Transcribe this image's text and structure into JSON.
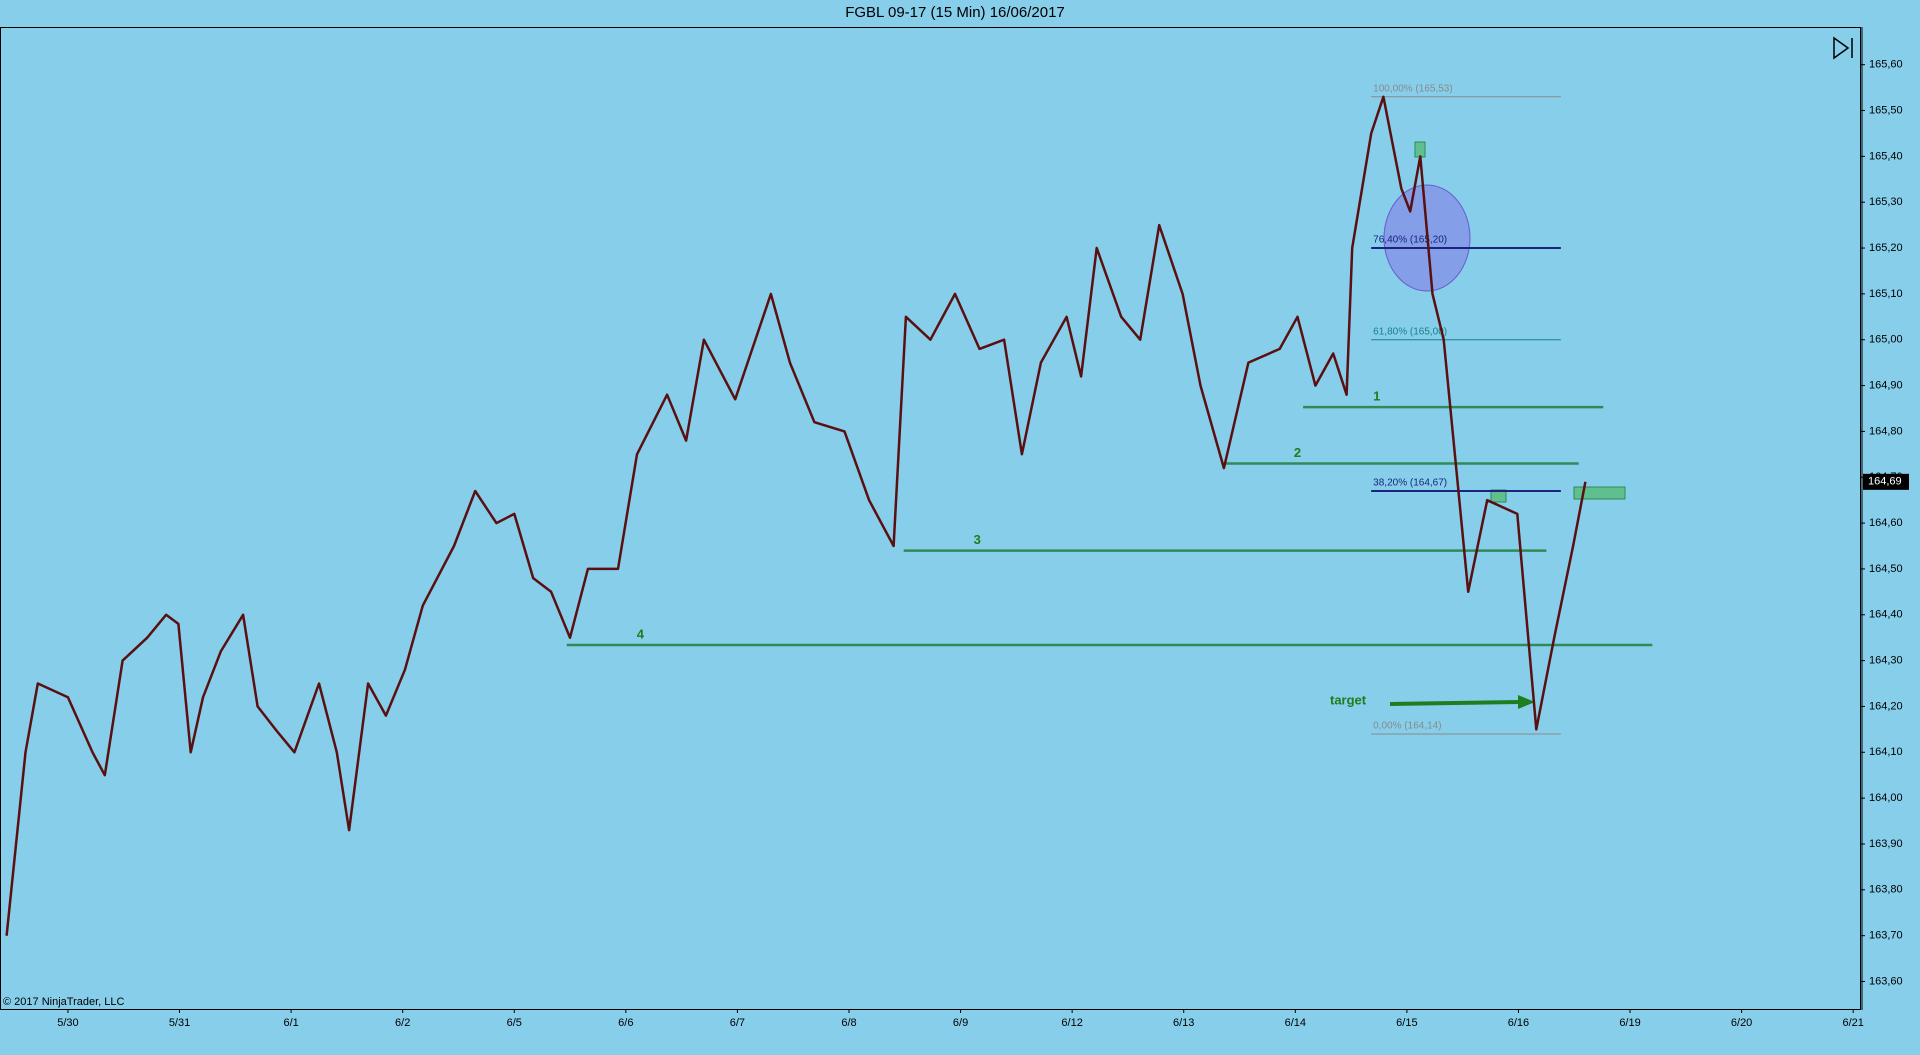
{
  "chart_data": {
    "type": "line",
    "title": "FGBL 09-17 (15 Min)  16/06/2017",
    "source_note": "© 2017 NinjaTrader, LLC",
    "color": "#5a1010",
    "x": [
      -0.55,
      -0.38,
      -0.27,
      0,
      0.22,
      0.33,
      0.49,
      0.71,
      0.88,
      0.99,
      1.1,
      1.21,
      1.37,
      1.57,
      1.7,
      1.86,
      2.03,
      2.25,
      2.41,
      2.52,
      2.69,
      2.85,
      3.02,
      3.18,
      3.46,
      3.65,
      3.84,
      4.0,
      4.17,
      4.33,
      4.5,
      4.66,
      4.93,
      5.1,
      5.37,
      5.54,
      5.7,
      5.98,
      6.3,
      6.47,
      6.69,
      6.96,
      7.18,
      7.4,
      7.51,
      7.73,
      7.95,
      8.17,
      8.39,
      8.55,
      8.72,
      8.95,
      9.08,
      9.22,
      9.44,
      9.61,
      9.78,
      9.99,
      10.15,
      10.36,
      10.58,
      10.86,
      11.02,
      11.18,
      11.34,
      11.46,
      11.51,
      11.68,
      11.79,
      11.95,
      12.03,
      12.12,
      12.23,
      12.33,
      12.45,
      12.55,
      12.72,
      12.99,
      13.16,
      13.32,
      13.49,
      13.6
    ],
    "values": [
      163.7,
      164.1,
      164.25,
      164.22,
      164.1,
      164.05,
      164.3,
      164.35,
      164.4,
      164.38,
      164.1,
      164.22,
      164.32,
      164.4,
      164.2,
      164.15,
      164.1,
      164.25,
      164.1,
      163.93,
      164.25,
      164.18,
      164.28,
      164.42,
      164.55,
      164.67,
      164.6,
      164.62,
      164.48,
      164.45,
      164.35,
      164.5,
      164.5,
      164.75,
      164.88,
      164.78,
      165.0,
      164.87,
      165.1,
      164.95,
      164.82,
      164.8,
      164.65,
      164.55,
      165.05,
      165.0,
      165.1,
      164.98,
      165.0,
      164.75,
      164.95,
      165.05,
      164.92,
      165.2,
      165.05,
      165.0,
      165.25,
      165.1,
      164.9,
      164.72,
      164.95,
      164.98,
      165.05,
      164.9,
      164.97,
      164.88,
      165.2,
      165.45,
      165.53,
      165.33,
      165.28,
      165.4,
      165.1,
      165.0,
      164.7,
      164.45,
      164.65,
      164.62,
      164.15,
      164.35,
      164.55,
      164.69
    ],
    "xlim": [
      -0.6,
      16.07
    ],
    "ylim": [
      163.54,
      165.68
    ],
    "xticks": [
      {
        "value": 0,
        "label": "5/30"
      },
      {
        "value": 1,
        "label": "5/31"
      },
      {
        "value": 2,
        "label": "6/1"
      },
      {
        "value": 3,
        "label": "6/2"
      },
      {
        "value": 4,
        "label": "6/5"
      },
      {
        "value": 5,
        "label": "6/6"
      },
      {
        "value": 6,
        "label": "6/7"
      },
      {
        "value": 7,
        "label": "6/8"
      },
      {
        "value": 8,
        "label": "6/9"
      },
      {
        "value": 9,
        "label": "6/12"
      },
      {
        "value": 10,
        "label": "6/13"
      },
      {
        "value": 11,
        "label": "6/14"
      },
      {
        "value": 12,
        "label": "6/15"
      },
      {
        "value": 13,
        "label": "6/16"
      },
      {
        "value": 14,
        "label": "6/19"
      },
      {
        "value": 15,
        "label": "6/20"
      },
      {
        "value": 16,
        "label": "6/21"
      }
    ],
    "yticks": [
      {
        "value": 163.6,
        "label": "163,60"
      },
      {
        "value": 163.7,
        "label": "163,70"
      },
      {
        "value": 163.8,
        "label": "163,80"
      },
      {
        "value": 163.9,
        "label": "163,90"
      },
      {
        "value": 164.0,
        "label": "164,00"
      },
      {
        "value": 164.1,
        "label": "164,10"
      },
      {
        "value": 164.2,
        "label": "164,20"
      },
      {
        "value": 164.3,
        "label": "164,30"
      },
      {
        "value": 164.4,
        "label": "164,40"
      },
      {
        "value": 164.5,
        "label": "164,50"
      },
      {
        "value": 164.6,
        "label": "164,60"
      },
      {
        "value": 164.7,
        "label": "164,70"
      },
      {
        "value": 164.8,
        "label": "164,80"
      },
      {
        "value": 164.9,
        "label": "164,90"
      },
      {
        "value": 165.0,
        "label": "165,00"
      },
      {
        "value": 165.1,
        "label": "165,10"
      },
      {
        "value": 165.2,
        "label": "165,20"
      },
      {
        "value": 165.3,
        "label": "165,30"
      },
      {
        "value": 165.4,
        "label": "165,40"
      },
      {
        "value": 165.5,
        "label": "165,50"
      },
      {
        "value": 165.6,
        "label": "165,60"
      }
    ],
    "last_price": {
      "value": 164.69,
      "label": "164,69"
    },
    "fib_levels": [
      {
        "label": "100,00% (165,53)",
        "value": 165.53,
        "color": "#8a8a8a",
        "x": [
          11.68,
          13.38
        ]
      },
      {
        "label": "76,40% (165,20)",
        "value": 165.2,
        "color": "#1a237e",
        "x": [
          11.68,
          13.38
        ]
      },
      {
        "label": "61,80% (165,00)",
        "value": 165.0,
        "color": "#16808a",
        "x": [
          11.68,
          13.38
        ]
      },
      {
        "label": "38,20% (164,67)",
        "value": 164.67,
        "color": "#1a237e",
        "x": [
          11.68,
          13.38
        ]
      },
      {
        "label": "0,00% (164,14)",
        "value": 164.14,
        "color": "#8a8a8a",
        "x": [
          11.68,
          13.38
        ]
      }
    ],
    "levels": [
      {
        "label": "1",
        "value": 164.853,
        "color": "#2e8b57",
        "x": [
          11.07,
          13.76
        ]
      },
      {
        "label": "2",
        "value": 164.73,
        "color": "#2e8b57",
        "x": [
          10.36,
          13.54
        ]
      },
      {
        "label": "3",
        "value": 164.54,
        "color": "#2e8b57",
        "x": [
          7.49,
          13.25
        ]
      },
      {
        "label": "4",
        "value": 164.334,
        "color": "#2e8b57",
        "x": [
          4.47,
          14.2
        ]
      }
    ],
    "annotation": "target"
  }
}
